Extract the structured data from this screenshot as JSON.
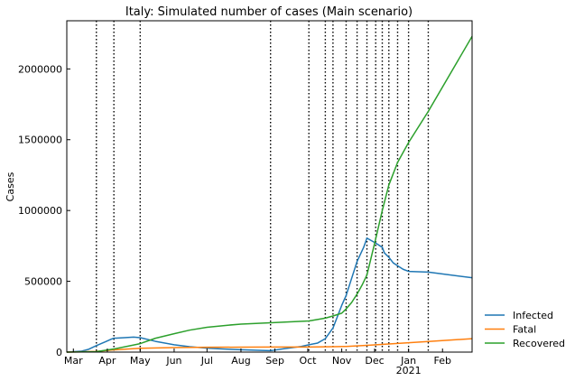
{
  "chart_data": {
    "type": "line",
    "title": "Italy: Simulated number of cases (Main scenario)",
    "xlabel": "",
    "ylabel": "Cases",
    "xlim": [
      "2020-02-24",
      "2021-02-28"
    ],
    "ylim": [
      0,
      2340000
    ],
    "y_ticks": [
      {
        "value": 0,
        "label": "0"
      },
      {
        "value": 500000,
        "label": "500000"
      },
      {
        "value": 1000000,
        "label": "1000000"
      },
      {
        "value": 1500000,
        "label": "1500000"
      },
      {
        "value": 2000000,
        "label": "2000000"
      }
    ],
    "x_ticks": [
      {
        "date": "2020-03-01",
        "label": "Mar"
      },
      {
        "date": "2020-04-01",
        "label": "Apr"
      },
      {
        "date": "2020-05-01",
        "label": "May"
      },
      {
        "date": "2020-06-01",
        "label": "Jun"
      },
      {
        "date": "2020-07-01",
        "label": "Jul"
      },
      {
        "date": "2020-08-01",
        "label": "Aug"
      },
      {
        "date": "2020-09-01",
        "label": "Sep"
      },
      {
        "date": "2020-10-01",
        "label": "Oct"
      },
      {
        "date": "2020-11-01",
        "label": "Nov"
      },
      {
        "date": "2020-12-01",
        "label": "Dec"
      },
      {
        "date": "2021-01-01",
        "label": "Jan"
      },
      {
        "date": "2021-02-01",
        "label": "Feb"
      }
    ],
    "x_year_label": {
      "date": "2021-01-01",
      "label": "2021"
    },
    "phase_change_dates": [
      "2020-03-22",
      "2020-04-07",
      "2020-05-01",
      "2020-08-28",
      "2020-10-02",
      "2020-10-17",
      "2020-10-24",
      "2020-11-05",
      "2020-11-15",
      "2020-11-24",
      "2020-12-02",
      "2020-12-08",
      "2020-12-14",
      "2020-12-22",
      "2021-01-01",
      "2021-01-19"
    ],
    "grid": false,
    "legend_position": "outside-lower-right",
    "series": [
      {
        "name": "Infected",
        "color": "#1f77b4",
        "points": [
          [
            "2020-02-24",
            200
          ],
          [
            "2020-03-08",
            6000
          ],
          [
            "2020-03-15",
            20000
          ],
          [
            "2020-03-22",
            46000
          ],
          [
            "2020-03-30",
            72000
          ],
          [
            "2020-04-05",
            93000
          ],
          [
            "2020-04-07",
            98000
          ],
          [
            "2020-04-15",
            101000
          ],
          [
            "2020-04-25",
            106000
          ],
          [
            "2020-05-01",
            102000
          ],
          [
            "2020-05-15",
            76000
          ],
          [
            "2020-06-01",
            52000
          ],
          [
            "2020-06-15",
            38000
          ],
          [
            "2020-07-01",
            28000
          ],
          [
            "2020-07-15",
            22000
          ],
          [
            "2020-08-01",
            17000
          ],
          [
            "2020-08-20",
            12000
          ],
          [
            "2020-08-28",
            10000
          ],
          [
            "2020-09-10",
            25000
          ],
          [
            "2020-09-25",
            40000
          ],
          [
            "2020-10-02",
            52000
          ],
          [
            "2020-10-10",
            64000
          ],
          [
            "2020-10-17",
            95000
          ],
          [
            "2020-10-24",
            170000
          ],
          [
            "2020-11-01",
            330000
          ],
          [
            "2020-11-05",
            400000
          ],
          [
            "2020-11-10",
            520000
          ],
          [
            "2020-11-15",
            640000
          ],
          [
            "2020-11-21",
            740000
          ],
          [
            "2020-11-24",
            805000
          ],
          [
            "2020-12-02",
            770000
          ],
          [
            "2020-12-08",
            740000
          ],
          [
            "2020-12-10",
            700000
          ],
          [
            "2020-12-14",
            670000
          ],
          [
            "2020-12-18",
            630000
          ],
          [
            "2020-12-22",
            610000
          ],
          [
            "2020-12-27",
            585000
          ],
          [
            "2021-01-01",
            570000
          ],
          [
            "2021-01-19",
            565000
          ],
          [
            "2021-02-28",
            525000
          ]
        ]
      },
      {
        "name": "Fatal",
        "color": "#ff7f0e",
        "points": [
          [
            "2020-02-24",
            0
          ],
          [
            "2020-03-22",
            5000
          ],
          [
            "2020-04-07",
            16000
          ],
          [
            "2020-05-01",
            27000
          ],
          [
            "2020-06-01",
            32000
          ],
          [
            "2020-07-01",
            34000
          ],
          [
            "2020-08-01",
            35000
          ],
          [
            "2020-09-01",
            35500
          ],
          [
            "2020-10-02",
            36000
          ],
          [
            "2020-10-24",
            38000
          ],
          [
            "2020-11-05",
            40000
          ],
          [
            "2020-11-24",
            48000
          ],
          [
            "2020-12-14",
            57000
          ],
          [
            "2021-01-01",
            66000
          ],
          [
            "2021-01-19",
            75000
          ],
          [
            "2021-02-28",
            95000
          ]
        ]
      },
      {
        "name": "Recovered",
        "color": "#2ca02c",
        "points": [
          [
            "2020-02-24",
            0
          ],
          [
            "2020-03-22",
            3000
          ],
          [
            "2020-04-07",
            22000
          ],
          [
            "2020-04-20",
            42000
          ],
          [
            "2020-05-01",
            60000
          ],
          [
            "2020-05-15",
            98000
          ],
          [
            "2020-06-01",
            130000
          ],
          [
            "2020-06-15",
            155000
          ],
          [
            "2020-07-01",
            175000
          ],
          [
            "2020-07-20",
            190000
          ],
          [
            "2020-08-01",
            198000
          ],
          [
            "2020-08-28",
            207000
          ],
          [
            "2020-09-10",
            212000
          ],
          [
            "2020-10-02",
            220000
          ],
          [
            "2020-10-17",
            240000
          ],
          [
            "2020-10-24",
            255000
          ],
          [
            "2020-11-01",
            275000
          ],
          [
            "2020-11-05",
            305000
          ],
          [
            "2020-11-10",
            350000
          ],
          [
            "2020-11-15",
            410000
          ],
          [
            "2020-11-20",
            480000
          ],
          [
            "2020-11-24",
            545000
          ],
          [
            "2020-12-02",
            800000
          ],
          [
            "2020-12-08",
            1000000
          ],
          [
            "2020-12-14",
            1180000
          ],
          [
            "2020-12-22",
            1340000
          ],
          [
            "2021-01-01",
            1480000
          ],
          [
            "2021-01-19",
            1700000
          ],
          [
            "2021-02-28",
            2230000
          ]
        ]
      }
    ]
  }
}
